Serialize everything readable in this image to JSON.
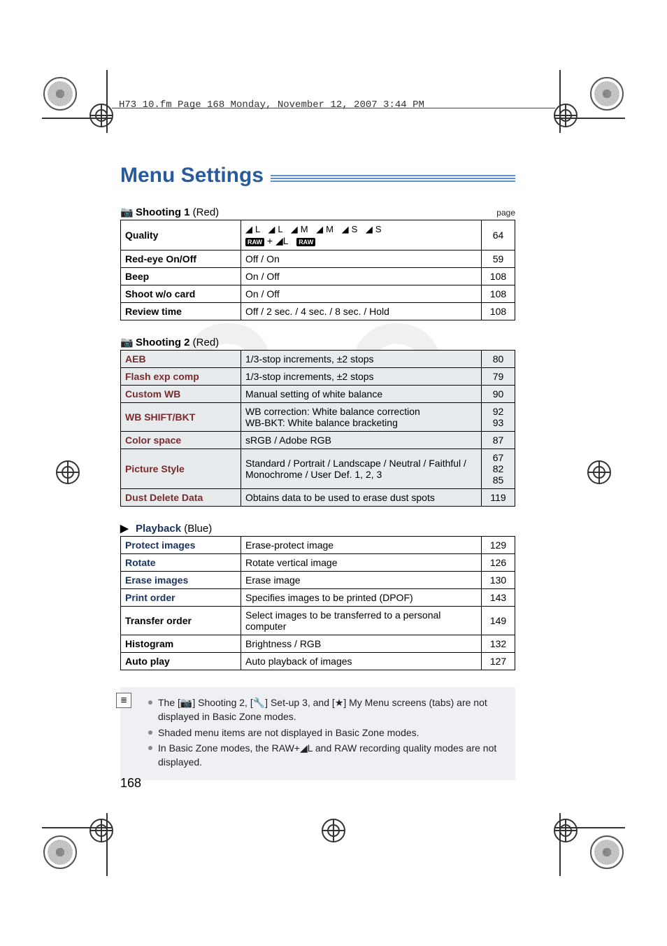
{
  "header_text": "H73_10.fm  Page 168  Monday, November 12, 2007  3:44 PM",
  "title": "Menu Settings",
  "page_label": "page",
  "page_number": "168",
  "sections": [
    {
      "icon": "📷",
      "name": "Shooting 1",
      "color": "(Red)",
      "show_page_label": true,
      "name_color": "#000",
      "rows": [
        {
          "shaded": false,
          "name": "Quality",
          "desc_html": "<span class='big-icons'>◢L ◢L ◢M ◢M ◢S ◢S</span><br><span class='raw-box'>RAW</span> + ◢L&nbsp;&nbsp;&nbsp;<span class='raw-box'>RAW</span>",
          "page": "64"
        },
        {
          "shaded": false,
          "name": "Red-eye On/Off",
          "desc": "Off / On",
          "page": "59"
        },
        {
          "shaded": false,
          "name": "Beep",
          "desc": "On / Off",
          "page": "108"
        },
        {
          "shaded": false,
          "name": "Shoot w/o card",
          "desc": "On / Off",
          "page": "108"
        },
        {
          "shaded": false,
          "name": "Review time",
          "desc": "Off / 2 sec. / 4 sec. / 8 sec. / Hold",
          "page": "108"
        }
      ]
    },
    {
      "icon": "📷",
      "name": "Shooting 2",
      "color": "(Red)",
      "show_page_label": false,
      "name_color": "#000",
      "rows": [
        {
          "shaded": true,
          "name": "AEB",
          "desc": "1/3-stop increments, ±2 stops",
          "page": "80"
        },
        {
          "shaded": true,
          "name": "Flash exp comp",
          "desc": "1/3-stop increments, ±2 stops",
          "page": "79"
        },
        {
          "shaded": true,
          "name": "Custom WB",
          "desc": "Manual setting of white balance",
          "page": "90"
        },
        {
          "shaded": true,
          "name": "WB SHIFT/BKT",
          "desc": "WB correction: White balance correction\nWB-BKT: White balance bracketing",
          "page": "92\n93"
        },
        {
          "shaded": true,
          "name": "Color space",
          "desc": "sRGB / Adobe RGB",
          "page": "87"
        },
        {
          "shaded": true,
          "name": "Picture Style",
          "desc": "Standard / Portrait / Landscape / Neutral / Faithful / Monochrome / User Def. 1, 2, 3",
          "page": "67\n82\n85"
        },
        {
          "shaded": true,
          "name": "Dust Delete Data",
          "desc": "Obtains data to be used to erase dust spots",
          "page": "119"
        }
      ]
    },
    {
      "icon": "▶",
      "name": "Playback",
      "color": "(Blue)",
      "show_page_label": false,
      "name_color": "#19325f",
      "rows": [
        {
          "shaded": false,
          "name": "Protect images",
          "desc": "Erase-protect image",
          "page": "129",
          "name_color": "#19325f"
        },
        {
          "shaded": false,
          "name": "Rotate",
          "desc": "Rotate vertical image",
          "page": "126",
          "name_color": "#19325f"
        },
        {
          "shaded": false,
          "name": "Erase images",
          "desc": "Erase image",
          "page": "130",
          "name_color": "#19325f"
        },
        {
          "shaded": false,
          "name": "Print order",
          "desc": "Specifies images to be printed (DPOF)",
          "page": "143",
          "name_color": "#19325f"
        },
        {
          "shaded": false,
          "name": "Transfer order",
          "desc": "Select images to be transferred to a personal computer",
          "page": "149",
          "name_color": "#000"
        },
        {
          "shaded": false,
          "name": "Histogram",
          "desc": "Brightness / RGB",
          "page": "132",
          "name_color": "#000"
        },
        {
          "shaded": false,
          "name": "Auto play",
          "desc": "Auto playback of images",
          "page": "127",
          "name_color": "#000"
        }
      ]
    }
  ],
  "notes": [
    "The [📷] Shooting 2, [🔧] Set-up 3, and [★] My Menu screens (tabs) are not displayed in Basic Zone modes.",
    "Shaded menu items are not displayed in Basic Zone modes.",
    "In Basic Zone modes, the RAW+◢L and RAW recording quality modes are not displayed."
  ]
}
